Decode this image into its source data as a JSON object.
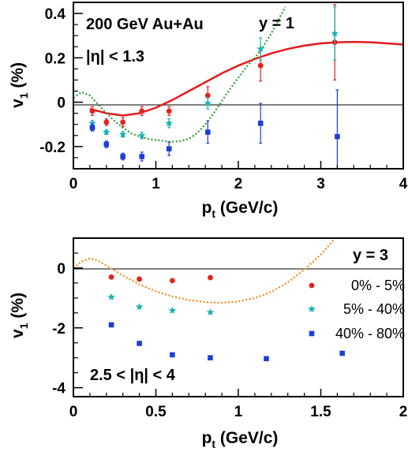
{
  "colors": {
    "centrality_0_5": "#e8201e",
    "centrality_5_40": "#1ab3b3",
    "centrality_40_80": "#1e3ed8",
    "fit_red": "#e41a1c",
    "fit_green": "#2ca02c",
    "fit_orange": "#f28a1a"
  },
  "chart_data": [
    {
      "type": "scatter",
      "panel": "top",
      "annotations": {
        "system": "200 GeV Au+Au",
        "eta_cut": "|η| < 1.3",
        "rapidity": "y = 1"
      },
      "xlabel_main": "p",
      "xlabel_sub": "t",
      "xlabel_unit": " (GeV/c)",
      "ylabel_main": "v",
      "ylabel_sub": "1",
      "ylabel_unit": " (%)",
      "xlim": [
        0,
        4
      ],
      "ylim": [
        -0.3,
        0.45
      ],
      "xticks": [
        0,
        1,
        2,
        3,
        4
      ],
      "xtick_labels": [
        "0",
        "1",
        "2",
        "3",
        "4"
      ],
      "yticks": [
        -0.2,
        0,
        0.2,
        0.4
      ],
      "ytick_labels": [
        "-0.2",
        "0",
        "0.2",
        "0.4"
      ],
      "zero_line": true,
      "series": [
        {
          "id": "c0_5",
          "marker": "circle",
          "color_key": "centrality_0_5",
          "points": [
            {
              "x": 0.23,
              "y": -0.04,
              "err": 0.02
            },
            {
              "x": 0.4,
              "y": -0.09,
              "err": 0.015
            },
            {
              "x": 0.6,
              "y": -0.09,
              "err": 0.02
            },
            {
              "x": 0.83,
              "y": -0.04,
              "err": 0.02
            },
            {
              "x": 1.16,
              "y": -0.04,
              "err": 0.02
            },
            {
              "x": 1.63,
              "y": 0.03,
              "err": 0.04
            },
            {
              "x": 2.27,
              "y": 0.165,
              "err": 0.07
            },
            {
              "x": 3.17,
              "y": 0.27,
              "err": 0.17
            }
          ]
        },
        {
          "id": "c5_40",
          "marker": "star",
          "color_key": "centrality_5_40",
          "points": [
            {
              "x": 0.23,
              "y": -0.095,
              "err": 0.012
            },
            {
              "x": 0.4,
              "y": -0.135,
              "err": 0.01
            },
            {
              "x": 0.6,
              "y": -0.145,
              "err": 0.012
            },
            {
              "x": 0.83,
              "y": -0.15,
              "err": 0.015
            },
            {
              "x": 1.16,
              "y": -0.095,
              "err": 0.02
            },
            {
              "x": 1.63,
              "y": -0.005,
              "err": 0.025
            },
            {
              "x": 2.27,
              "y": 0.24,
              "err": 0.05
            },
            {
              "x": 3.17,
              "y": 0.31,
              "err": 0.12
            }
          ]
        },
        {
          "id": "c40_80",
          "marker": "square",
          "color_key": "centrality_40_80",
          "points": [
            {
              "x": 0.23,
              "y": -0.115,
              "err": 0.015
            },
            {
              "x": 0.4,
              "y": -0.19,
              "err": 0.015
            },
            {
              "x": 0.6,
              "y": -0.245,
              "err": 0.015
            },
            {
              "x": 0.83,
              "y": -0.245,
              "err": 0.02
            },
            {
              "x": 1.16,
              "y": -0.21,
              "err": 0.03
            },
            {
              "x": 1.63,
              "y": -0.135,
              "err": 0.05
            },
            {
              "x": 2.27,
              "y": -0.095,
              "err": 0.09
            },
            {
              "x": 3.2,
              "y": -0.155,
              "err": 0.21
            }
          ]
        }
      ],
      "curves": [
        {
          "id": "fit-red-solid",
          "style": "solid",
          "color_key": "fit_red",
          "points": [
            [
              0.2,
              -0.03
            ],
            [
              0.4,
              -0.05
            ],
            [
              0.6,
              -0.06
            ],
            [
              0.8,
              -0.05
            ],
            [
              1.0,
              -0.025
            ],
            [
              1.2,
              0.01
            ],
            [
              1.4,
              0.05
            ],
            [
              1.6,
              0.09
            ],
            [
              1.8,
              0.13
            ],
            [
              2.0,
              0.165
            ],
            [
              2.2,
              0.195
            ],
            [
              2.4,
              0.22
            ],
            [
              2.6,
              0.24
            ],
            [
              2.8,
              0.255
            ],
            [
              3.0,
              0.265
            ],
            [
              3.2,
              0.27
            ],
            [
              3.4,
              0.272
            ],
            [
              3.6,
              0.27
            ],
            [
              3.8,
              0.265
            ],
            [
              4.0,
              0.26
            ]
          ]
        },
        {
          "id": "fit-green-dotted",
          "style": "dotted",
          "color_key": "fit_green",
          "points": [
            [
              0.0,
              0.02
            ],
            [
              0.1,
              0.045
            ],
            [
              0.2,
              0.03
            ],
            [
              0.3,
              -0.01
            ],
            [
              0.4,
              -0.05
            ],
            [
              0.5,
              -0.085
            ],
            [
              0.6,
              -0.115
            ],
            [
              0.7,
              -0.14
            ],
            [
              0.8,
              -0.155
            ],
            [
              0.9,
              -0.165
            ],
            [
              1.0,
              -0.17
            ],
            [
              1.1,
              -0.175
            ],
            [
              1.2,
              -0.178
            ],
            [
              1.3,
              -0.175
            ],
            [
              1.4,
              -0.165
            ],
            [
              1.5,
              -0.14
            ],
            [
              1.6,
              -0.1
            ],
            [
              1.7,
              -0.05
            ],
            [
              1.8,
              0.005
            ],
            [
              1.9,
              0.06
            ],
            [
              2.0,
              0.11
            ],
            [
              2.1,
              0.16
            ],
            [
              2.2,
              0.2
            ],
            [
              2.3,
              0.25
            ],
            [
              2.4,
              0.31
            ],
            [
              2.5,
              0.38
            ],
            [
              2.57,
              0.43
            ]
          ]
        }
      ]
    },
    {
      "type": "scatter",
      "panel": "bottom",
      "annotations": {
        "rapidity": "y = 3",
        "eta_cut": "2.5 < |η| < 4"
      },
      "xlabel_main": "p",
      "xlabel_sub": "t",
      "xlabel_unit": " (GeV/c)",
      "ylabel_main": "v",
      "ylabel_sub": "1",
      "ylabel_unit": " (%)",
      "xlim": [
        0,
        2
      ],
      "ylim": [
        -4.3,
        1.0
      ],
      "xticks": [
        0,
        0.5,
        1,
        1.5,
        2
      ],
      "xtick_labels": [
        "0",
        "0.5",
        "1",
        "1.5",
        "2"
      ],
      "yticks": [
        -4,
        -2,
        0
      ],
      "ytick_labels": [
        "-4",
        "-2",
        "0"
      ],
      "zero_line": true,
      "legend": [
        {
          "label": "0% - 5%",
          "marker": "circle",
          "color_key": "centrality_0_5"
        },
        {
          "label": "5% - 40%",
          "marker": "star",
          "color_key": "centrality_5_40"
        },
        {
          "label": "40% - 80%",
          "marker": "square",
          "color_key": "centrality_40_80"
        }
      ],
      "series": [
        {
          "id": "c0_5",
          "marker": "circle",
          "color_key": "centrality_0_5",
          "points": [
            {
              "x": 0.23,
              "y": -0.3
            },
            {
              "x": 0.4,
              "y": -0.37
            },
            {
              "x": 0.6,
              "y": -0.42
            },
            {
              "x": 0.83,
              "y": -0.32
            }
          ]
        },
        {
          "id": "c5_40",
          "marker": "star",
          "color_key": "centrality_5_40",
          "points": [
            {
              "x": 0.23,
              "y": -0.97
            },
            {
              "x": 0.4,
              "y": -1.3
            },
            {
              "x": 0.6,
              "y": -1.42
            },
            {
              "x": 0.83,
              "y": -1.48
            }
          ]
        },
        {
          "id": "c40_80",
          "marker": "square",
          "color_key": "centrality_40_80",
          "points": [
            {
              "x": 0.23,
              "y": -1.9
            },
            {
              "x": 0.4,
              "y": -2.52
            },
            {
              "x": 0.6,
              "y": -2.9
            },
            {
              "x": 0.83,
              "y": -3.0
            },
            {
              "x": 1.17,
              "y": -3.03
            },
            {
              "x": 1.63,
              "y": -2.85
            }
          ]
        }
      ],
      "curves": [
        {
          "id": "fit-orange-dotted",
          "style": "dotted",
          "color_key": "fit_orange",
          "points": [
            [
              0.0,
              0.0
            ],
            [
              0.05,
              0.22
            ],
            [
              0.1,
              0.32
            ],
            [
              0.15,
              0.25
            ],
            [
              0.2,
              0.08
            ],
            [
              0.3,
              -0.25
            ],
            [
              0.4,
              -0.55
            ],
            [
              0.5,
              -0.78
            ],
            [
              0.6,
              -0.95
            ],
            [
              0.7,
              -1.07
            ],
            [
              0.8,
              -1.14
            ],
            [
              0.9,
              -1.16
            ],
            [
              1.0,
              -1.12
            ],
            [
              1.1,
              -1.0
            ],
            [
              1.2,
              -0.8
            ],
            [
              1.3,
              -0.48
            ],
            [
              1.4,
              -0.05
            ],
            [
              1.5,
              0.45
            ],
            [
              1.58,
              0.95
            ]
          ]
        }
      ]
    }
  ]
}
